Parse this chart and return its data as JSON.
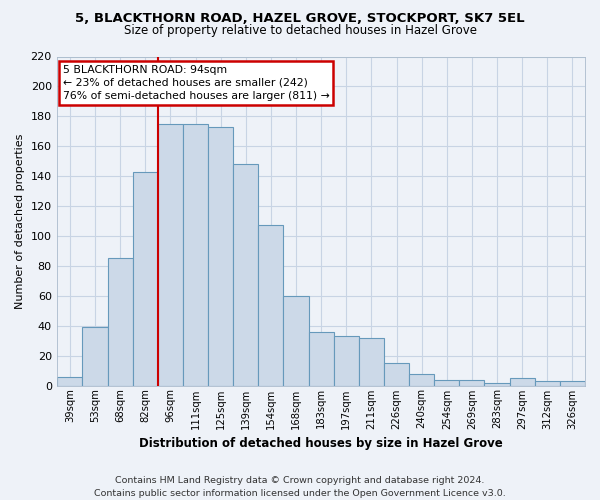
{
  "title1": "5, BLACKTHORN ROAD, HAZEL GROVE, STOCKPORT, SK7 5EL",
  "title2": "Size of property relative to detached houses in Hazel Grove",
  "xlabel": "Distribution of detached houses by size in Hazel Grove",
  "ylabel": "Number of detached properties",
  "categories": [
    "39sqm",
    "53sqm",
    "68sqm",
    "82sqm",
    "96sqm",
    "111sqm",
    "125sqm",
    "139sqm",
    "154sqm",
    "168sqm",
    "183sqm",
    "197sqm",
    "211sqm",
    "226sqm",
    "240sqm",
    "254sqm",
    "269sqm",
    "283sqm",
    "297sqm",
    "312sqm",
    "326sqm"
  ],
  "values": [
    6,
    39,
    85,
    143,
    175,
    175,
    173,
    148,
    107,
    60,
    36,
    33,
    32,
    15,
    8,
    4,
    4,
    2,
    5,
    3,
    3
  ],
  "bar_color": "#ccd9e8",
  "bar_edge_color": "#6699bb",
  "vline_index": 4,
  "vline_color": "#cc0000",
  "annotation_line1": "5 BLACKTHORN ROAD: 94sqm",
  "annotation_line2": "← 23% of detached houses are smaller (242)",
  "annotation_line3": "76% of semi-detached houses are larger (811) →",
  "annotation_box_color": "white",
  "annotation_box_edge": "#cc0000",
  "footer_line1": "Contains HM Land Registry data © Crown copyright and database right 2024.",
  "footer_line2": "Contains public sector information licensed under the Open Government Licence v3.0.",
  "ylim": [
    0,
    220
  ],
  "yticks": [
    0,
    20,
    40,
    60,
    80,
    100,
    120,
    140,
    160,
    180,
    200,
    220
  ],
  "grid_color": "#c8d4e4",
  "bg_color": "#eef2f8"
}
